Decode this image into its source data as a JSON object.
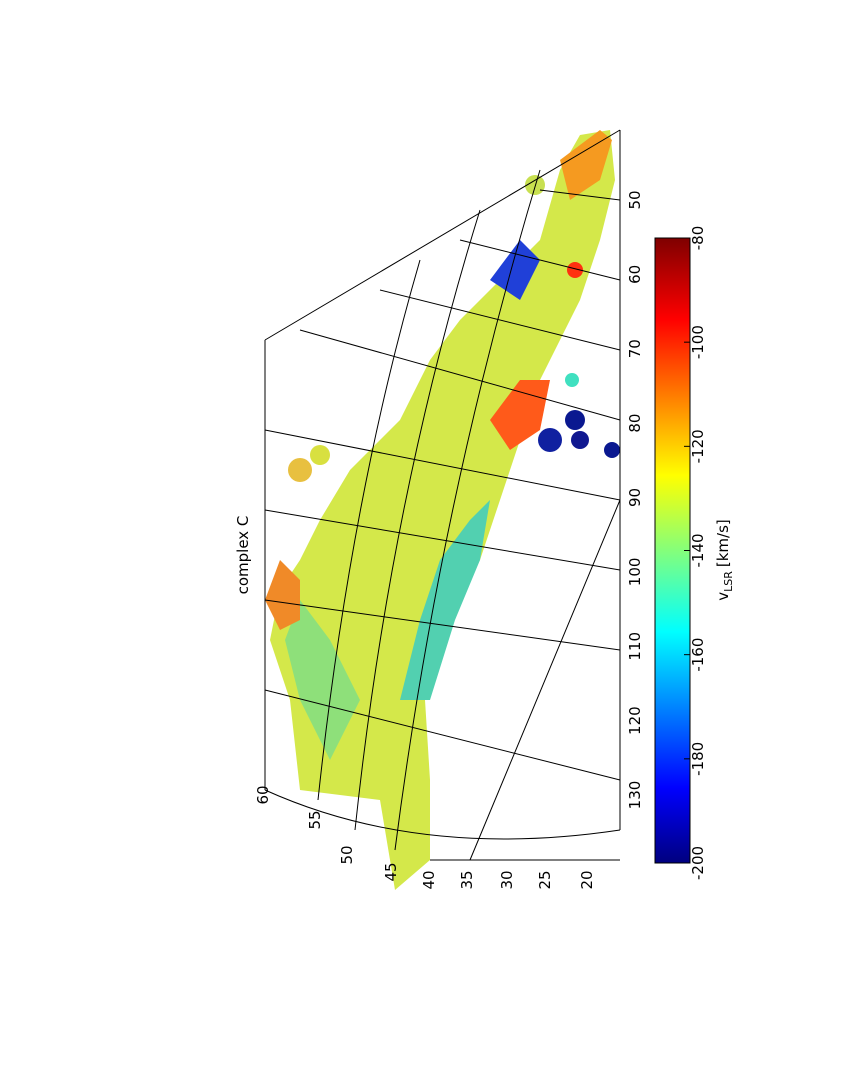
{
  "title": "complex C",
  "latitude_labels": [
    60,
    55,
    50,
    45,
    40,
    35,
    30,
    25,
    20
  ],
  "longitude_labels": [
    130,
    120,
    110,
    100,
    90,
    80,
    70,
    60,
    50
  ],
  "colorbar": {
    "label": "v",
    "label_sub": "LSR",
    "label_unit": "[km/s]",
    "lim": [
      -200,
      -80
    ],
    "ticks": [
      -200,
      -180,
      -160,
      -140,
      -120,
      -100,
      -80
    ]
  }
}
